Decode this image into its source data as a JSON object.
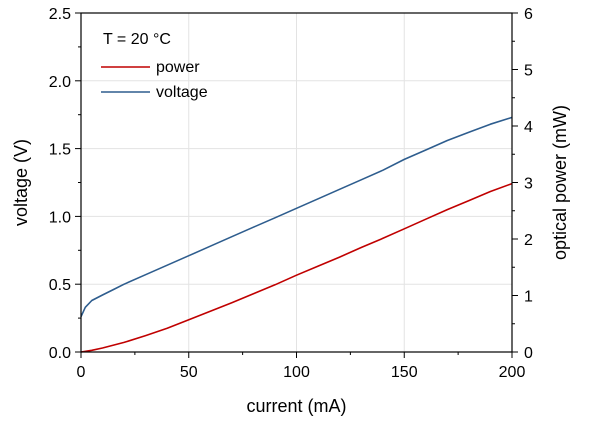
{
  "chart_data": {
    "type": "line",
    "title": "",
    "annotation": "T = 20 °C",
    "xlabel": "current (mA)",
    "ylabel_left": "voltage (V)",
    "ylabel_right": "optical power (mW)",
    "xlim": [
      0,
      200
    ],
    "ylim_left": [
      0,
      2.5
    ],
    "ylim_right": [
      0,
      6
    ],
    "x_ticks": [
      0,
      50,
      100,
      150,
      200
    ],
    "x_tick_labels": [
      "0",
      "50",
      "100",
      "150",
      "200"
    ],
    "y_left_ticks": [
      0,
      0.5,
      1.0,
      1.5,
      2.0,
      2.5
    ],
    "y_left_tick_labels": [
      "0.0",
      "0.5",
      "1.0",
      "1.5",
      "2.0",
      "2.5"
    ],
    "y_right_ticks": [
      0,
      1,
      2,
      3,
      4,
      5,
      6
    ],
    "y_right_tick_labels": [
      "0",
      "1",
      "2",
      "3",
      "4",
      "5",
      "6"
    ],
    "grid": true,
    "legend_position": "top-left",
    "series": [
      {
        "name": "power",
        "color": "#c00000",
        "axis": "right",
        "x": [
          0,
          5,
          10,
          20,
          30,
          40,
          50,
          60,
          70,
          80,
          90,
          100,
          110,
          120,
          130,
          140,
          150,
          160,
          170,
          180,
          190,
          200
        ],
        "values": [
          0.0,
          0.03,
          0.07,
          0.17,
          0.29,
          0.42,
          0.57,
          0.72,
          0.87,
          1.03,
          1.19,
          1.36,
          1.52,
          1.68,
          1.85,
          2.01,
          2.18,
          2.35,
          2.52,
          2.68,
          2.84,
          2.98
        ]
      },
      {
        "name": "voltage",
        "color": "#2e5d8e",
        "axis": "left",
        "x": [
          0,
          2,
          5,
          10,
          15,
          20,
          30,
          40,
          50,
          60,
          70,
          80,
          90,
          100,
          110,
          120,
          130,
          140,
          150,
          160,
          170,
          180,
          190,
          200
        ],
        "values": [
          0.26,
          0.33,
          0.38,
          0.42,
          0.46,
          0.5,
          0.57,
          0.64,
          0.71,
          0.78,
          0.85,
          0.92,
          0.99,
          1.06,
          1.13,
          1.2,
          1.27,
          1.34,
          1.42,
          1.49,
          1.56,
          1.62,
          1.68,
          1.73
        ]
      }
    ]
  }
}
